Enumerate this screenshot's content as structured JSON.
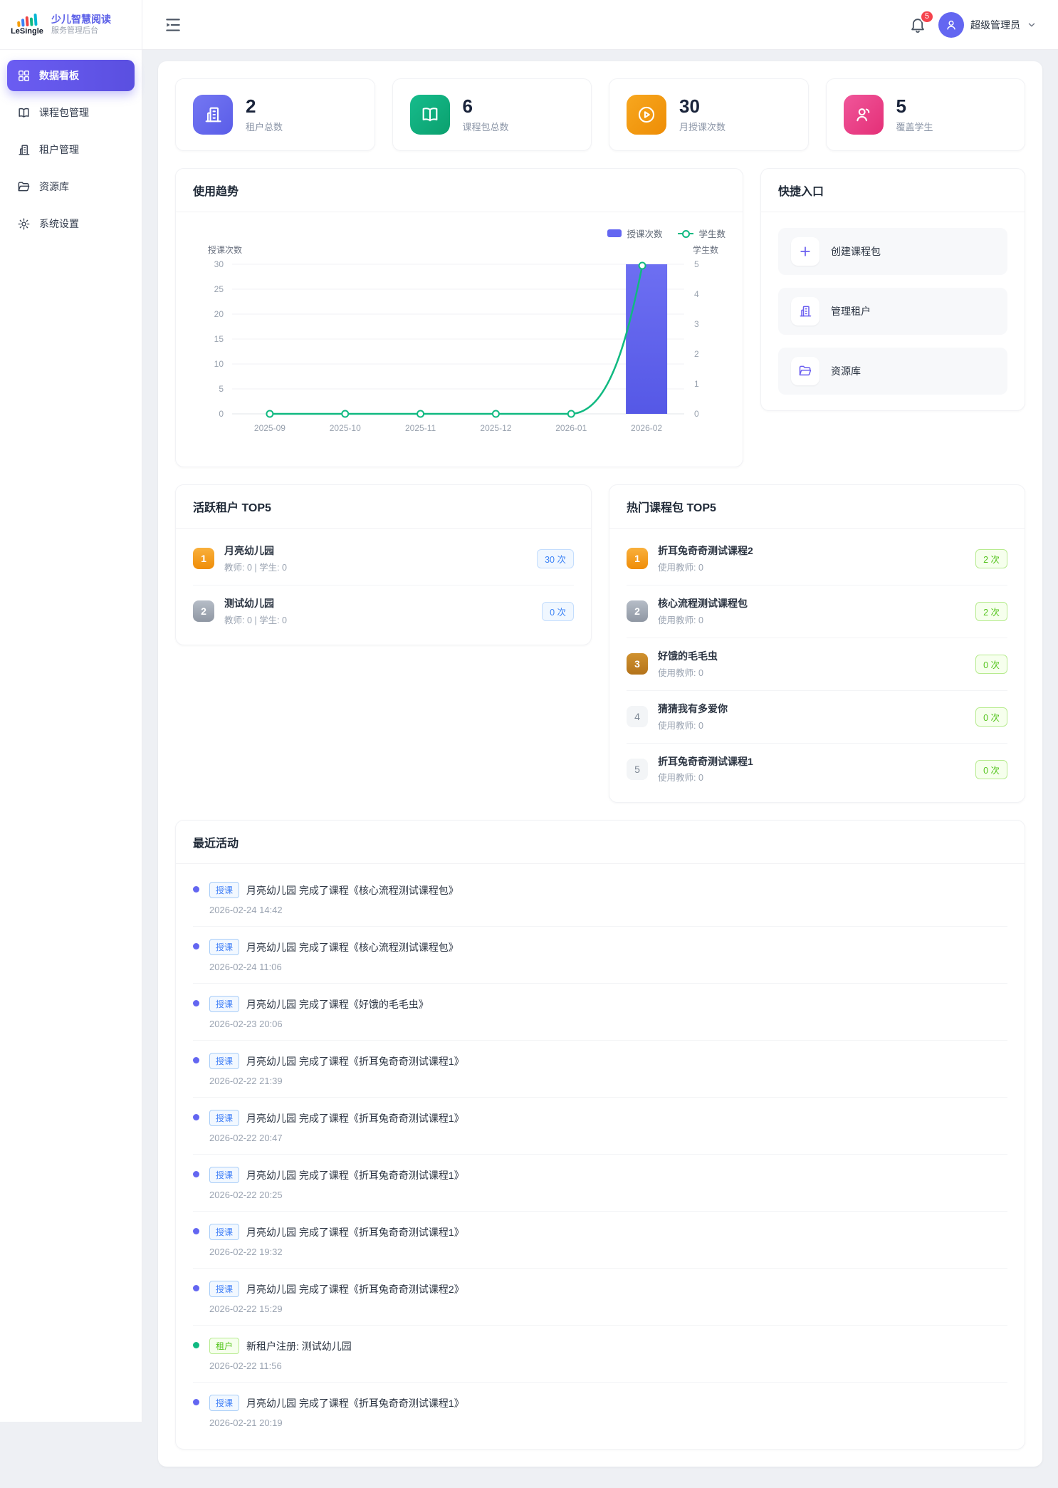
{
  "brand": {
    "logo_text": "LeSingle",
    "title": "少儿智慧阅读",
    "subtitle": "服务管理后台"
  },
  "topbar": {
    "notification_count": "5",
    "user_name": "超级管理员"
  },
  "sidebar": {
    "items": [
      {
        "label": "数据看板"
      },
      {
        "label": "课程包管理"
      },
      {
        "label": "租户管理"
      },
      {
        "label": "资源库"
      },
      {
        "label": "系统设置"
      }
    ]
  },
  "stats": [
    {
      "value": "2",
      "label": "租户总数"
    },
    {
      "value": "6",
      "label": "课程包总数"
    },
    {
      "value": "30",
      "label": "月授课次数"
    },
    {
      "value": "5",
      "label": "覆盖学生"
    }
  ],
  "trend": {
    "title": "使用趋势",
    "legend": [
      {
        "label": "授课次数"
      },
      {
        "label": "学生数"
      }
    ]
  },
  "chart_data": {
    "type": "bar",
    "categories": [
      "2025-09",
      "2025-10",
      "2025-11",
      "2025-12",
      "2026-01",
      "2026-02"
    ],
    "series": [
      {
        "name": "授课次数",
        "type": "bar",
        "axis": "left",
        "values": [
          0,
          0,
          0,
          0,
          0,
          30
        ]
      },
      {
        "name": "学生数",
        "type": "line",
        "axis": "right",
        "values": [
          0,
          0,
          0,
          0,
          0,
          5
        ]
      }
    ],
    "left_axis": {
      "label": "授课次数",
      "ticks": [
        0,
        5,
        10,
        15,
        20,
        25,
        30
      ],
      "max": 30
    },
    "right_axis": {
      "label": "学生数",
      "ticks": [
        0,
        1,
        2,
        3,
        4,
        5
      ],
      "max": 5
    },
    "colors": {
      "bar": "#6366f1",
      "line": "#10b981"
    },
    "grid": true,
    "legend_position": "top-right"
  },
  "quick": {
    "title": "快捷入口",
    "items": [
      {
        "label": "创建课程包"
      },
      {
        "label": "管理租户"
      },
      {
        "label": "资源库"
      }
    ]
  },
  "tenants": {
    "title": "活跃租户 TOP5",
    "items": [
      {
        "rank": "1",
        "name": "月亮幼儿园",
        "meta": "教师: 0 | 学生: 0",
        "count": "30 次"
      },
      {
        "rank": "2",
        "name": "测试幼儿园",
        "meta": "教师: 0 | 学生: 0",
        "count": "0 次"
      }
    ]
  },
  "packages": {
    "title": "热门课程包 TOP5",
    "items": [
      {
        "rank": "1",
        "name": "折耳兔奇奇测试课程2",
        "meta": "使用教师: 0",
        "count": "2 次"
      },
      {
        "rank": "2",
        "name": "核心流程测试课程包",
        "meta": "使用教师: 0",
        "count": "2 次"
      },
      {
        "rank": "3",
        "name": "好饿的毛毛虫",
        "meta": "使用教师: 0",
        "count": "0 次"
      },
      {
        "rank": "4",
        "name": "猜猜我有多爱你",
        "meta": "使用教师: 0",
        "count": "0 次"
      },
      {
        "rank": "5",
        "name": "折耳兔奇奇测试课程1",
        "meta": "使用教师: 0",
        "count": "0 次"
      }
    ]
  },
  "activities": {
    "title": "最近活动",
    "items": [
      {
        "tag": "授课",
        "text": "月亮幼儿园 完成了课程《核心流程测试课程包》",
        "time": "2026-02-24 14:42"
      },
      {
        "tag": "授课",
        "text": "月亮幼儿园 完成了课程《核心流程测试课程包》",
        "time": "2026-02-24 11:06"
      },
      {
        "tag": "授课",
        "text": "月亮幼儿园 完成了课程《好饿的毛毛虫》",
        "time": "2026-02-23 20:06"
      },
      {
        "tag": "授课",
        "text": "月亮幼儿园 完成了课程《折耳兔奇奇测试课程1》",
        "time": "2026-02-22 21:39"
      },
      {
        "tag": "授课",
        "text": "月亮幼儿园 完成了课程《折耳兔奇奇测试课程1》",
        "time": "2026-02-22 20:47"
      },
      {
        "tag": "授课",
        "text": "月亮幼儿园 完成了课程《折耳兔奇奇测试课程1》",
        "time": "2026-02-22 20:25"
      },
      {
        "tag": "授课",
        "text": "月亮幼儿园 完成了课程《折耳兔奇奇测试课程1》",
        "time": "2026-02-22 19:32"
      },
      {
        "tag": "授课",
        "text": "月亮幼儿园 完成了课程《折耳兔奇奇测试课程2》",
        "time": "2026-02-22 15:29"
      },
      {
        "tag": "租户",
        "text": "新租户注册: 测试幼儿园",
        "time": "2026-02-22 11:56"
      },
      {
        "tag": "授课",
        "text": "月亮幼儿园 完成了课程《折耳兔奇奇测试课程1》",
        "time": "2026-02-21 20:19"
      }
    ]
  },
  "colors": {
    "accent": "#6366f1",
    "green": "#10b981",
    "orange": "#f59e0b",
    "pink": "#ec4899",
    "badge_blue": "#3c83f6",
    "badge_green": "#52c41a",
    "danger": "#f5434d"
  }
}
